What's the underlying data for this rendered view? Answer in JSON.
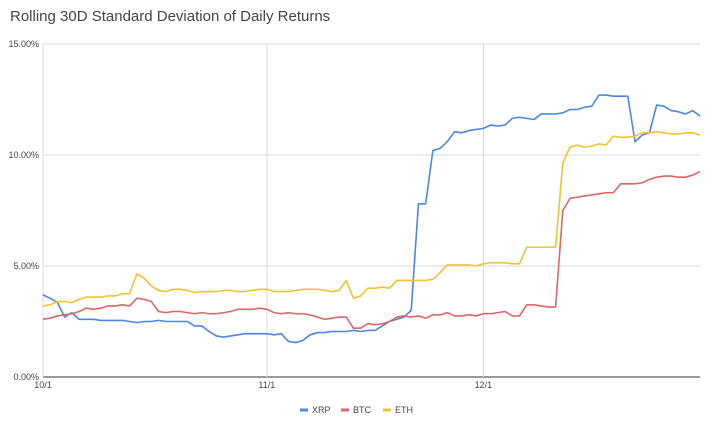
{
  "chart_data": {
    "type": "line",
    "title": "Rolling 30D Standard Deviation of Daily Returns",
    "xlabel": "",
    "ylabel": "",
    "ylim": [
      0,
      15
    ],
    "y_ticks": [
      0,
      5,
      10,
      15
    ],
    "y_tick_labels": [
      "0.00%",
      "5.00%",
      "10.00%",
      "15.00%"
    ],
    "x_range": [
      "10/1",
      "12/31"
    ],
    "x_ticks": [
      {
        "day": 0,
        "label": "10/1"
      },
      {
        "day": 31,
        "label": "11/1"
      },
      {
        "day": 61,
        "label": "12/1"
      }
    ],
    "grid": true,
    "legend_position": "bottom",
    "series": [
      {
        "name": "XRP",
        "color": "#4a86e8",
        "values": [
          3.7,
          3.55,
          3.35,
          2.7,
          2.9,
          2.6,
          2.6,
          2.6,
          2.55,
          2.55,
          2.55,
          2.55,
          2.5,
          2.45,
          2.5,
          2.5,
          2.55,
          2.5,
          2.5,
          2.5,
          2.5,
          2.3,
          2.3,
          2.05,
          1.85,
          1.8,
          1.85,
          1.9,
          1.95,
          1.95,
          1.95,
          1.95,
          1.9,
          1.95,
          1.6,
          1.55,
          1.65,
          1.9,
          2.0,
          2.0,
          2.05,
          2.05,
          2.05,
          2.1,
          2.05,
          2.1,
          2.1,
          2.3,
          2.5,
          2.6,
          2.7,
          3.0,
          7.8,
          7.8,
          10.2,
          10.3,
          10.6,
          11.05,
          11.0,
          11.1,
          11.15,
          11.2,
          11.35,
          11.3,
          11.35,
          11.65,
          11.7,
          11.65,
          11.6,
          11.85,
          11.85,
          11.85,
          11.9,
          12.05,
          12.05,
          12.15,
          12.2,
          12.7,
          12.7,
          12.65,
          12.65,
          12.65,
          10.6,
          10.9,
          11.0,
          12.25,
          12.2,
          12.0,
          11.95,
          11.85,
          12.0,
          11.75
        ]
      },
      {
        "name": "BTC",
        "color": "#e06666",
        "values": [
          2.6,
          2.65,
          2.75,
          2.8,
          2.85,
          2.95,
          3.1,
          3.05,
          3.1,
          3.2,
          3.2,
          3.25,
          3.2,
          3.55,
          3.5,
          3.4,
          2.95,
          2.9,
          2.95,
          2.95,
          2.9,
          2.85,
          2.9,
          2.85,
          2.85,
          2.9,
          2.95,
          3.05,
          3.05,
          3.05,
          3.1,
          3.05,
          2.9,
          2.85,
          2.9,
          2.85,
          2.85,
          2.8,
          2.7,
          2.6,
          2.65,
          2.7,
          2.7,
          2.2,
          2.2,
          2.4,
          2.35,
          2.4,
          2.5,
          2.7,
          2.75,
          2.7,
          2.75,
          2.65,
          2.8,
          2.8,
          2.9,
          2.75,
          2.75,
          2.8,
          2.75,
          2.85,
          2.85,
          2.9,
          2.95,
          2.75,
          2.75,
          3.25,
          3.25,
          3.2,
          3.15,
          3.15,
          7.5,
          8.05,
          8.1,
          8.15,
          8.2,
          8.25,
          8.3,
          8.3,
          8.7,
          8.7,
          8.7,
          8.75,
          8.9,
          9.0,
          9.05,
          9.05,
          9.0,
          9.0,
          9.1,
          9.25
        ]
      },
      {
        "name": "ETH",
        "color": "#f1c232",
        "values": [
          3.2,
          3.25,
          3.4,
          3.4,
          3.35,
          3.5,
          3.6,
          3.6,
          3.6,
          3.65,
          3.65,
          3.75,
          3.75,
          4.65,
          4.45,
          4.1,
          3.9,
          3.85,
          3.95,
          3.95,
          3.9,
          3.8,
          3.85,
          3.85,
          3.85,
          3.9,
          3.9,
          3.85,
          3.85,
          3.9,
          3.95,
          3.95,
          3.85,
          3.85,
          3.85,
          3.9,
          3.95,
          3.95,
          3.95,
          3.9,
          3.85,
          3.9,
          4.35,
          3.55,
          3.65,
          4.0,
          4.0,
          4.05,
          4.0,
          4.35,
          4.35,
          4.35,
          4.35,
          4.35,
          4.4,
          4.7,
          5.05,
          5.05,
          5.05,
          5.05,
          5.0,
          5.1,
          5.15,
          5.15,
          5.15,
          5.1,
          5.1,
          5.85,
          5.85,
          5.85,
          5.85,
          5.85,
          9.65,
          10.35,
          10.45,
          10.35,
          10.4,
          10.5,
          10.45,
          10.85,
          10.8,
          10.8,
          10.85,
          11.0,
          11.0,
          11.05,
          11.0,
          10.95,
          10.95,
          11.0,
          11.0,
          10.9
        ]
      }
    ]
  }
}
